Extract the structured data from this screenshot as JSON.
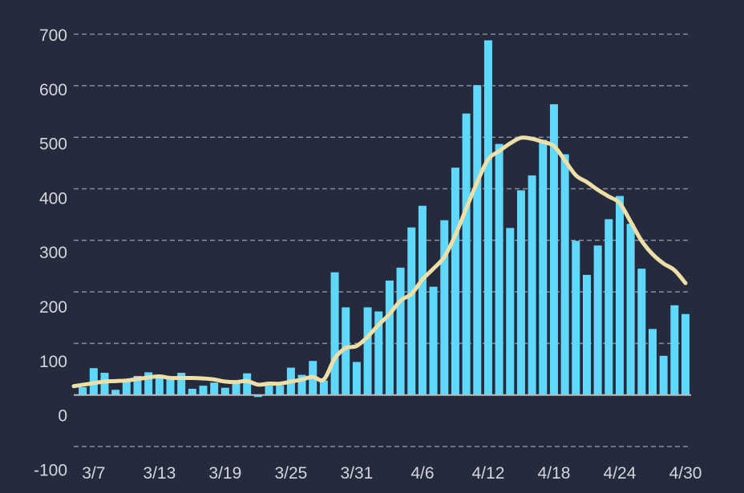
{
  "chart_data": {
    "type": "bar",
    "title": "",
    "xlabel": "",
    "ylabel": "",
    "ylim": [
      -100,
      700
    ],
    "yticks": [
      "700",
      "600",
      "500",
      "400",
      "300",
      "200",
      "100",
      "0",
      "-100"
    ],
    "ytick_values": [
      700,
      600,
      500,
      400,
      300,
      200,
      100,
      0,
      -100
    ],
    "xticks": [
      "3/7",
      "3/13",
      "3/19",
      "3/25",
      "3/31",
      "4/6",
      "4/12",
      "4/18",
      "4/24",
      "4/30"
    ],
    "grid": true,
    "colors": {
      "background": "#252a3c",
      "bars": "#5fd8fb",
      "line": "#eedfa8",
      "grid": "#8a8e99",
      "text": "#d4d6dc"
    },
    "categories": [
      "3/6",
      "3/7",
      "3/8",
      "3/9",
      "3/10",
      "3/11",
      "3/12",
      "3/13",
      "3/14",
      "3/15",
      "3/16",
      "3/17",
      "3/18",
      "3/19",
      "3/20",
      "3/21",
      "3/22",
      "3/23",
      "3/24",
      "3/25",
      "3/26",
      "3/27",
      "3/28",
      "3/29",
      "3/30",
      "3/31",
      "4/1",
      "4/2",
      "4/3",
      "4/4",
      "4/5",
      "4/6",
      "4/7",
      "4/8",
      "4/9",
      "4/10",
      "4/11",
      "4/12",
      "4/13",
      "4/14",
      "4/15",
      "4/16",
      "4/17",
      "4/18",
      "4/19",
      "4/20",
      "4/21",
      "4/22",
      "4/23",
      "4/24",
      "4/25",
      "4/26",
      "4/27",
      "4/28",
      "4/29",
      "4/30"
    ],
    "series": [
      {
        "type": "bar",
        "values": [
          15,
          52,
          43,
          10,
          25,
          37,
          44,
          38,
          30,
          43,
          12,
          18,
          24,
          14,
          22,
          42,
          -4,
          18,
          18,
          53,
          39,
          66,
          28,
          238,
          170,
          64,
          170,
          162,
          222,
          247,
          325,
          367,
          210,
          339,
          441,
          546,
          601,
          688,
          487,
          324,
          397,
          426,
          495,
          564,
          467,
          299,
          233,
          290,
          341,
          386,
          332,
          245,
          128,
          76,
          174,
          157
        ]
      },
      {
        "type": "line",
        "values": [
          17,
          23,
          26,
          27,
          28,
          31,
          34,
          36,
          33,
          33,
          33,
          32,
          30,
          26,
          25,
          27,
          20,
          22,
          22,
          26,
          30,
          35,
          30,
          71,
          91,
          95,
          113,
          136,
          157,
          183,
          196,
          224,
          245,
          268,
          310,
          362,
          413,
          457,
          473,
          488,
          499,
          497,
          491,
          483,
          455,
          426,
          413,
          398,
          385,
          372,
          336,
          299,
          273,
          255,
          242,
          217
        ]
      }
    ]
  }
}
